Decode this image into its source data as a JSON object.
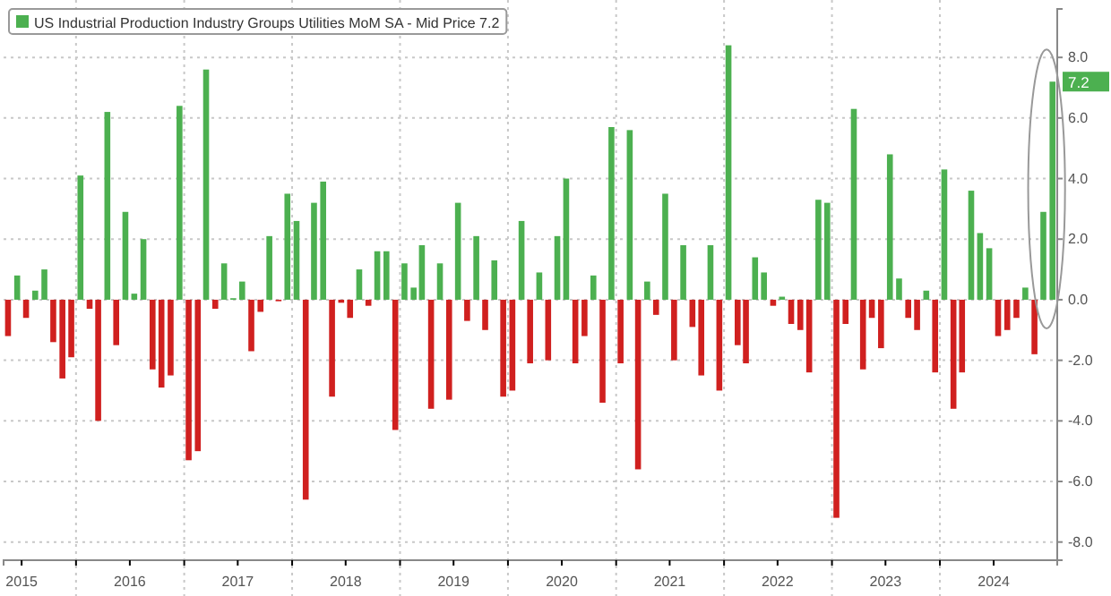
{
  "chart_data": {
    "type": "bar",
    "x": [
      "2015-05",
      "2015-06",
      "2015-07",
      "2015-08",
      "2015-09",
      "2015-10",
      "2015-11",
      "2015-12",
      "2016-01",
      "2016-02",
      "2016-03",
      "2016-04",
      "2016-05",
      "2016-06",
      "2016-07",
      "2016-08",
      "2016-09",
      "2016-10",
      "2016-11",
      "2016-12",
      "2017-01",
      "2017-02",
      "2017-03",
      "2017-04",
      "2017-05",
      "2017-06",
      "2017-07",
      "2017-08",
      "2017-09",
      "2017-10",
      "2017-11",
      "2017-12",
      "2018-01",
      "2018-02",
      "2018-03",
      "2018-04",
      "2018-05",
      "2018-06",
      "2018-07",
      "2018-08",
      "2018-09",
      "2018-10",
      "2018-11",
      "2018-12",
      "2019-01",
      "2019-02",
      "2019-03",
      "2019-04",
      "2019-05",
      "2019-06",
      "2019-07",
      "2019-08",
      "2019-09",
      "2019-10",
      "2019-11",
      "2019-12",
      "2020-01",
      "2020-02",
      "2020-03",
      "2020-04",
      "2020-05",
      "2020-06",
      "2020-07",
      "2020-08",
      "2020-09",
      "2020-10",
      "2020-11",
      "2020-12",
      "2021-01",
      "2021-02",
      "2021-03",
      "2021-04",
      "2021-05",
      "2021-06",
      "2021-07",
      "2021-08",
      "2021-09",
      "2021-10",
      "2021-11",
      "2021-12",
      "2022-01",
      "2022-02",
      "2022-03",
      "2022-04",
      "2022-05",
      "2022-06",
      "2022-07",
      "2022-08",
      "2022-09",
      "2022-10",
      "2022-11",
      "2022-12",
      "2023-01",
      "2023-02",
      "2023-03",
      "2023-04",
      "2023-05",
      "2023-06",
      "2023-07",
      "2023-08",
      "2023-09",
      "2023-10",
      "2023-11",
      "2023-12",
      "2024-01",
      "2024-02",
      "2024-03",
      "2024-04",
      "2024-05",
      "2024-06",
      "2024-07",
      "2024-08",
      "2024-09",
      "2024-10",
      "2024-11",
      "2024-12",
      "2025-01"
    ],
    "series": [
      {
        "name": "US Industrial Production Industry Groups Utilities MoM SA - Mid Price 7.2",
        "color": "#4cb050",
        "values": [
          -1.2,
          0.8,
          -0.6,
          0.3,
          1.0,
          -1.4,
          -2.6,
          -1.9,
          4.1,
          -0.3,
          -4.0,
          6.2,
          -1.5,
          2.9,
          0.2,
          2.0,
          -2.3,
          -2.9,
          -2.5,
          6.4,
          -5.3,
          -5.0,
          7.6,
          -0.3,
          1.2,
          0.05,
          0.6,
          -1.7,
          -0.4,
          2.1,
          -0.05,
          3.5,
          2.6,
          -6.6,
          3.2,
          3.9,
          -3.2,
          -0.1,
          -0.6,
          1.0,
          -0.2,
          1.6,
          1.6,
          -4.3,
          1.2,
          0.4,
          1.8,
          -3.6,
          1.2,
          -3.3,
          3.2,
          -0.7,
          2.1,
          -1.0,
          1.3,
          -3.2,
          -3.0,
          2.6,
          -2.1,
          0.9,
          -2.0,
          2.1,
          4.0,
          -2.1,
          -1.2,
          0.8,
          -3.4,
          5.7,
          -2.1,
          5.6,
          -5.6,
          0.6,
          -0.5,
          3.5,
          -2.0,
          1.8,
          -0.9,
          -2.5,
          1.8,
          -3.0,
          8.4,
          -1.5,
          -2.1,
          1.4,
          0.9,
          -0.2,
          0.1,
          -0.8,
          -1.0,
          -2.4,
          3.3,
          3.2,
          -7.2,
          -0.8,
          6.3,
          -2.3,
          -0.6,
          -1.6,
          4.8,
          0.7,
          -0.6,
          -1.0,
          0.3,
          -2.4,
          4.3,
          -3.6,
          -2.4,
          3.6,
          2.2,
          1.7,
          -1.2,
          -1.0,
          -0.6,
          0.4,
          -1.8,
          2.9,
          7.2
        ],
        "colors": [
          "#d0201f",
          "#4cb050",
          "#d0201f",
          "#4cb050",
          "#4cb050",
          "#d0201f",
          "#d0201f",
          "#d0201f",
          "#4cb050",
          "#d0201f",
          "#d0201f",
          "#4cb050",
          "#d0201f",
          "#4cb050",
          "#4cb050",
          "#4cb050",
          "#d0201f",
          "#d0201f",
          "#d0201f",
          "#4cb050",
          "#d0201f",
          "#d0201f",
          "#4cb050",
          "#d0201f",
          "#4cb050",
          "#4cb050",
          "#4cb050",
          "#d0201f",
          "#d0201f",
          "#4cb050",
          "#d0201f",
          "#4cb050",
          "#4cb050",
          "#d0201f",
          "#4cb050",
          "#4cb050",
          "#d0201f",
          "#d0201f",
          "#d0201f",
          "#4cb050",
          "#d0201f",
          "#4cb050",
          "#4cb050",
          "#d0201f",
          "#4cb050",
          "#4cb050",
          "#4cb050",
          "#d0201f",
          "#4cb050",
          "#d0201f",
          "#4cb050",
          "#d0201f",
          "#4cb050",
          "#d0201f",
          "#4cb050",
          "#d0201f",
          "#d0201f",
          "#4cb050",
          "#d0201f",
          "#4cb050",
          "#d0201f",
          "#4cb050",
          "#4cb050",
          "#d0201f",
          "#d0201f",
          "#4cb050",
          "#d0201f",
          "#4cb050",
          "#d0201f",
          "#4cb050",
          "#d0201f",
          "#4cb050",
          "#d0201f",
          "#4cb050",
          "#d0201f",
          "#4cb050",
          "#d0201f",
          "#d0201f",
          "#4cb050",
          "#d0201f",
          "#4cb050",
          "#d0201f",
          "#d0201f",
          "#4cb050",
          "#4cb050",
          "#d0201f",
          "#4cb050",
          "#d0201f",
          "#d0201f",
          "#d0201f",
          "#4cb050",
          "#4cb050",
          "#d0201f",
          "#d0201f",
          "#4cb050",
          "#d0201f",
          "#d0201f",
          "#d0201f",
          "#4cb050",
          "#4cb050",
          "#d0201f",
          "#d0201f",
          "#4cb050",
          "#d0201f",
          "#4cb050",
          "#d0201f",
          "#d0201f",
          "#4cb050",
          "#4cb050",
          "#4cb050",
          "#d0201f",
          "#d0201f",
          "#d0201f",
          "#4cb050",
          "#d0201f",
          "#4cb050",
          "#4cb050"
        ]
      }
    ],
    "xlim": [
      "2015-05-01",
      "2025-02-01"
    ],
    "xticks": [
      {
        "value": "2015-07-01",
        "label": "2015"
      },
      {
        "value": "2016-01-01",
        "label": null
      },
      {
        "value": "2016-07-01",
        "label": "2016"
      },
      {
        "value": "2017-01-01",
        "label": null
      },
      {
        "value": "2017-07-01",
        "label": "2017"
      },
      {
        "value": "2018-01-01",
        "label": null
      },
      {
        "value": "2018-07-01",
        "label": "2018"
      },
      {
        "value": "2019-01-01",
        "label": null
      },
      {
        "value": "2019-07-01",
        "label": "2019"
      },
      {
        "value": "2020-01-01",
        "label": null
      },
      {
        "value": "2020-07-01",
        "label": "2020"
      },
      {
        "value": "2021-01-01",
        "label": null
      },
      {
        "value": "2021-07-01",
        "label": "2021"
      },
      {
        "value": "2022-01-01",
        "label": null
      },
      {
        "value": "2022-07-01",
        "label": "2022"
      },
      {
        "value": "2023-01-01",
        "label": null
      },
      {
        "value": "2023-07-01",
        "label": "2023"
      },
      {
        "value": "2024-01-01",
        "label": null
      },
      {
        "value": "2024-07-01",
        "label": "2024"
      }
    ],
    "ylim": [
      -8.6,
      9.6
    ],
    "yticks": [
      {
        "value": -8,
        "label": "-8.0"
      },
      {
        "value": -6,
        "label": "-6.0"
      },
      {
        "value": -4,
        "label": "-4.0"
      },
      {
        "value": -2,
        "label": "-2.0"
      },
      {
        "value": 0,
        "label": "0.0"
      },
      {
        "value": 2,
        "label": "2.0"
      },
      {
        "value": 4,
        "label": "4.0"
      },
      {
        "value": 6,
        "label": "6.0"
      },
      {
        "value": 8,
        "label": "8.0"
      }
    ],
    "annotations": [
      {
        "text": "7.2",
        "x": "2025-01",
        "y": 7.2
      }
    ],
    "grid": true,
    "legend": "top left"
  }
}
